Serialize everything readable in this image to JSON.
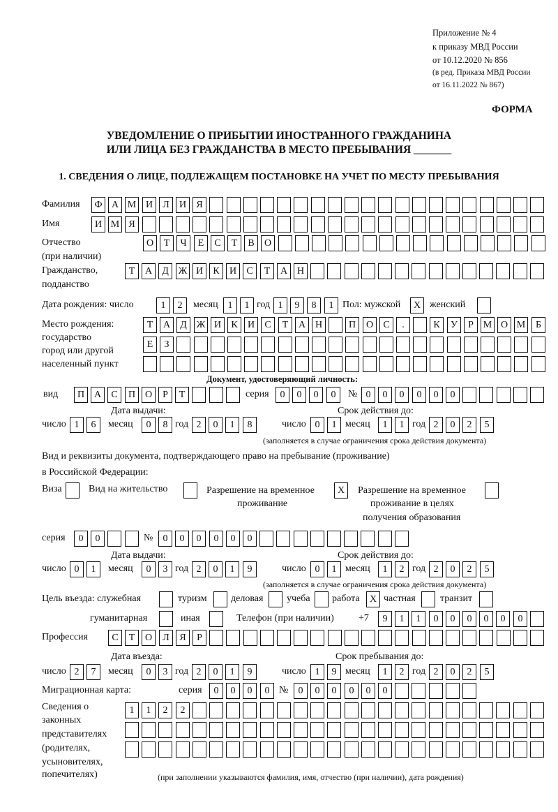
{
  "header": {
    "line1": "Приложение № 4",
    "line2": "к приказу МВД России",
    "line3": "от 10.12.2020 № 856",
    "line4": "(в ред. Приказа МВД России",
    "line5": "от 16.11.2022 № 867)",
    "form_label": "ФОРМА",
    "title1": "УВЕДОМЛЕНИЕ О ПРИБЫТИИ ИНОСТРАННОГО ГРАЖДАНИНА",
    "title2": "ИЛИ ЛИЦА БЕЗ ГРАЖДАНСТВА В МЕСТО ПРЕБЫВАНИЯ _______",
    "section1": "1. СВЕДЕНИЯ О ЛИЦЕ, ПОДЛЕЖАЩЕМ ПОСТАНОВКЕ НА УЧЕТ ПО МЕСТУ ПРЕБЫВАНИЯ"
  },
  "labels": {
    "surname": "Фамилия",
    "name": "Имя",
    "patronymic": "Отчество",
    "patronymic_note": "(при наличии)",
    "citizenship": "Гражданство,",
    "citizenship2": "подданство",
    "birth_date": "Дата рождения:  число",
    "month": "месяц",
    "year": "год",
    "day": "число",
    "sex_male": "Пол: мужской",
    "sex_female": "женский",
    "birth_place": "Место рождения:",
    "birth_place2": "государство",
    "birth_place3": "город или другой",
    "birth_place4": "населенный пункт",
    "id_doc": "Документ, удостоверяющий личность:",
    "kind": "вид",
    "series": "серия",
    "number": "№",
    "issue_date": "Дата выдачи:",
    "valid_until": "Срок действия до:",
    "validity_note": "(заполняется в случае ограничения срока действия документа)",
    "permit_doc1": "Вид и реквизиты документа, подтверждающего право на пребывание (проживание)",
    "permit_doc2": "в Российской Федерации:",
    "visa": "Виза",
    "residence": "Вид на жительство",
    "temp_residence1": "Разрешение на временное",
    "temp_residence2": "проживание",
    "temp_edu1": "Разрешение на временное",
    "temp_edu2": "проживание в целях",
    "temp_edu3": "получения образования",
    "purpose": "Цель въезда: служебная",
    "tourism": "туризм",
    "business": "деловая",
    "study": "учеба",
    "work": "работа",
    "private": "частная",
    "transit": "транзит",
    "humanitarian": "гуманитарная",
    "other": "иная",
    "phone": "Телефон (при наличии)",
    "phone_prefix": "+7",
    "profession": "Профессия",
    "entry_date": "Дата въезда:",
    "stay_until": "Срок пребывания до:",
    "migration_card": "Миграционная карта:",
    "reps1": "Сведения о",
    "reps2": "законных",
    "reps3": "представителях",
    "reps4": "(родителях,",
    "reps5": "усыновителях,",
    "reps6": "попечителях)",
    "reps_note": "(при заполнении указываются фамилия, имя, отчество (при наличии), дата рождения)"
  },
  "person": {
    "surname": "ФАМИЛИЯ",
    "name": "ИМЯ",
    "patronymic": "ОТЧЕСТВО",
    "citizenship": "ТАДЖИКИСТАН",
    "birth_day": "12",
    "birth_month": "11",
    "birth_year": "1981",
    "sex_male": "X",
    "sex_female": "",
    "birth_place_1": "ТАДЖИКИСТАН ПОС. КУРМОМБ",
    "birth_place_2": "ЕЗ",
    "birth_place_3": ""
  },
  "id_document": {
    "kind": "ПАСПОРТ",
    "series": "0000",
    "number": "000000",
    "issue_day": "16",
    "issue_month": "08",
    "issue_year": "2018",
    "valid_day": "01",
    "valid_month": "11",
    "valid_year": "2025"
  },
  "permit": {
    "visa": "",
    "residence": "",
    "temp_residence": "X",
    "temp_edu": "",
    "series": "00",
    "number": "000000",
    "issue_day": "01",
    "issue_month": "03",
    "issue_year": "2019",
    "valid_day": "01",
    "valid_month": "12",
    "valid_year": "2025"
  },
  "purpose": {
    "official": "",
    "tourism": "",
    "business": "",
    "study": "",
    "work": "X",
    "private": "",
    "transit": "",
    "humanitarian": "",
    "other": ""
  },
  "phone": "911000000",
  "profession": "СТОЛЯР",
  "entry": {
    "entry_day": "27",
    "entry_month": "03",
    "entry_year": "2019",
    "stay_day": "19",
    "stay_month": "12",
    "stay_year": "2025"
  },
  "migration_card": {
    "series": "0000",
    "number": "000000"
  },
  "representatives": {
    "row1": "1122",
    "row2": "",
    "row3": ""
  }
}
